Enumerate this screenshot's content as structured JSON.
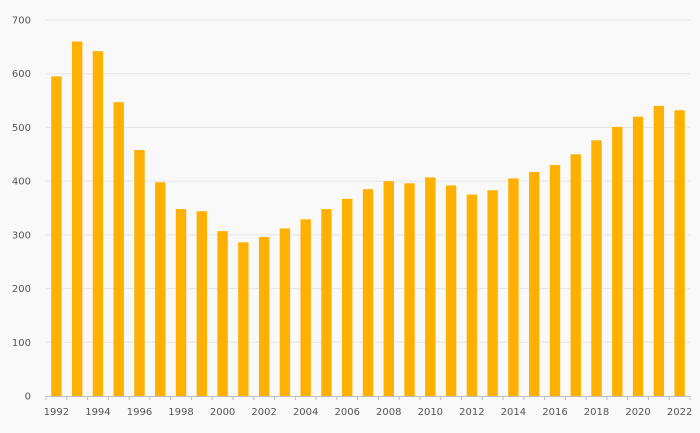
{
  "chart_data": {
    "type": "bar",
    "title": "",
    "xlabel": "",
    "ylabel": "",
    "ylim": [
      0,
      700
    ],
    "yticks": [
      0,
      100,
      200,
      300,
      400,
      500,
      600,
      700
    ],
    "grid": true,
    "bar_color": "#FFB000",
    "categories": [
      "1992",
      "1993",
      "1994",
      "1995",
      "1996",
      "1997",
      "1998",
      "1999",
      "2000",
      "2001",
      "2002",
      "2003",
      "2004",
      "2005",
      "2006",
      "2007",
      "2008",
      "2009",
      "2010",
      "2011",
      "2012",
      "2013",
      "2014",
      "2015",
      "2016",
      "2017",
      "2018",
      "2019",
      "2020",
      "2021",
      "2022"
    ],
    "xtick_labels": [
      "1992",
      "1994",
      "1996",
      "1998",
      "2000",
      "2002",
      "2004",
      "2006",
      "2008",
      "2010",
      "2012",
      "2014",
      "2016",
      "2018",
      "2020",
      "2022"
    ],
    "values": [
      595,
      660,
      642,
      547,
      458,
      398,
      348,
      344,
      307,
      286,
      296,
      312,
      329,
      348,
      367,
      385,
      400,
      396,
      407,
      392,
      375,
      383,
      405,
      417,
      430,
      450,
      476,
      501,
      520,
      540,
      532
    ]
  }
}
